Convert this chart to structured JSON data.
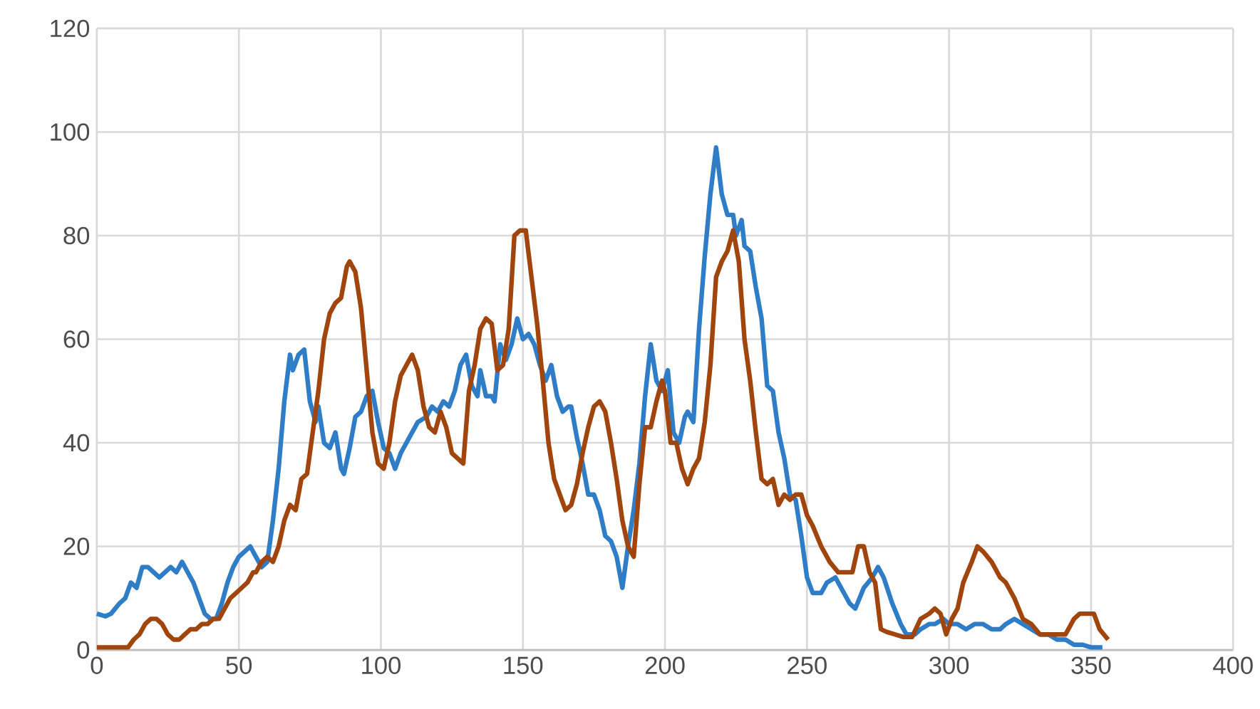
{
  "chart_data": {
    "type": "line",
    "xlim": [
      0,
      400
    ],
    "ylim": [
      0,
      120
    ],
    "xticks": [
      0,
      50,
      100,
      150,
      200,
      250,
      300,
      350,
      400
    ],
    "yticks": [
      0,
      20,
      40,
      60,
      80,
      100,
      120
    ],
    "grid": true,
    "line_style": "solid",
    "marker": "none",
    "series": [
      {
        "color": "#2e7dc6",
        "x": [
          0,
          3,
          5,
          8,
          10,
          12,
          14,
          16,
          18,
          20,
          22,
          24,
          26,
          28,
          30,
          32,
          34,
          36,
          38,
          40,
          42,
          44,
          46,
          48,
          50,
          52,
          54,
          56,
          58,
          60,
          62,
          64,
          66,
          68,
          69,
          71,
          73,
          75,
          77,
          78,
          80,
          82,
          84,
          86,
          87,
          89,
          91,
          93,
          95,
          97,
          99,
          101,
          103,
          105,
          107,
          110,
          113,
          116,
          118,
          120,
          122,
          124,
          126,
          128,
          130,
          132,
          134,
          135,
          137,
          139,
          140,
          142,
          144,
          146,
          148,
          150,
          152,
          154,
          156,
          158,
          160,
          162,
          164,
          166,
          167,
          169,
          171,
          173,
          175,
          177,
          179,
          181,
          183,
          185,
          187,
          189,
          191,
          193,
          195,
          197,
          199,
          201,
          203,
          205,
          207,
          208,
          210,
          212,
          214,
          216,
          218,
          220,
          222,
          224,
          225,
          227,
          228,
          230,
          232,
          234,
          236,
          238,
          240,
          242,
          244,
          246,
          248,
          250,
          252,
          255,
          257,
          260,
          263,
          265,
          267,
          270,
          273,
          275,
          277,
          280,
          283,
          285,
          288,
          290,
          293,
          295,
          298,
          300,
          303,
          306,
          309,
          312,
          315,
          318,
          320,
          323,
          326,
          329,
          332,
          335,
          338,
          341,
          344,
          347,
          350,
          354
        ],
        "values": [
          7,
          6.5,
          7,
          9,
          10,
          13,
          12,
          16,
          16,
          15,
          14,
          15,
          16,
          15,
          17,
          15,
          13,
          10,
          7,
          6,
          6,
          9,
          13,
          16,
          18,
          19,
          20,
          18,
          16,
          17,
          25,
          35,
          48,
          57,
          54,
          57,
          58,
          48,
          44,
          47,
          40,
          39,
          42,
          35,
          34,
          39,
          45,
          46,
          49,
          50,
          44,
          39,
          38,
          35,
          38,
          41,
          44,
          45,
          47,
          46,
          48,
          47,
          50,
          55,
          57,
          51,
          49,
          54,
          49,
          49,
          48,
          59,
          56,
          59,
          64,
          60,
          61,
          59,
          55,
          52,
          55,
          49,
          46,
          47,
          47,
          41,
          36,
          30,
          30,
          27,
          22,
          21,
          18,
          12,
          20,
          27,
          36,
          49,
          59,
          52,
          50,
          54,
          42,
          40,
          45,
          46,
          44,
          62,
          76,
          88,
          97,
          88,
          84,
          84,
          80,
          83,
          78,
          77,
          70,
          64,
          51,
          50,
          42,
          37,
          30,
          29,
          22,
          14,
          11,
          11,
          13,
          14,
          11,
          9,
          8,
          12,
          14,
          16,
          14,
          9,
          5,
          3,
          3,
          4,
          5,
          5,
          6,
          5,
          5,
          4,
          5,
          5,
          4,
          4,
          5,
          6,
          5,
          4,
          3,
          3,
          2,
          2,
          1,
          1,
          0.5,
          0.5
        ]
      },
      {
        "color": "#a0450d",
        "x": [
          0,
          5,
          9,
          11,
          13,
          15,
          17,
          19,
          21,
          23,
          25,
          27,
          29,
          31,
          33,
          35,
          37,
          39,
          41,
          43,
          45,
          47,
          49,
          51,
          53,
          55,
          56,
          58,
          60,
          62,
          64,
          66,
          68,
          70,
          72,
          74,
          76,
          78,
          80,
          82,
          84,
          86,
          88,
          89,
          91,
          93,
          95,
          97,
          99,
          101,
          103,
          105,
          107,
          109,
          111,
          113,
          115,
          117,
          119,
          121,
          123,
          125,
          127,
          129,
          131,
          133,
          135,
          137,
          139,
          141,
          143,
          145,
          147,
          149,
          151,
          153,
          155,
          157,
          159,
          161,
          163,
          165,
          167,
          169,
          171,
          173,
          175,
          177,
          179,
          181,
          183,
          185,
          187,
          189,
          191,
          193,
          195,
          197,
          199,
          200,
          202,
          204,
          206,
          208,
          210,
          212,
          214,
          216,
          218,
          220,
          222,
          224,
          226,
          228,
          230,
          232,
          234,
          236,
          238,
          240,
          242,
          244,
          246,
          248,
          250,
          252,
          255,
          258,
          261,
          263,
          266,
          268,
          270,
          272,
          274,
          276,
          278,
          281,
          284,
          287,
          290,
          293,
          295,
          297,
          299,
          301,
          303,
          305,
          308,
          310,
          312,
          315,
          318,
          320,
          323,
          326,
          329,
          332,
          335,
          338,
          341,
          344,
          346,
          349,
          351,
          353,
          356
        ],
        "values": [
          0.5,
          0.5,
          0.5,
          0.5,
          2,
          3,
          5,
          6,
          6,
          5,
          3,
          2,
          2,
          3,
          4,
          4,
          5,
          5,
          6,
          6,
          8,
          10,
          11,
          12,
          13,
          15,
          15,
          17,
          18,
          17,
          20,
          25,
          28,
          27,
          33,
          34,
          42,
          50,
          60,
          65,
          67,
          68,
          74,
          75,
          73,
          66,
          54,
          42,
          36,
          35,
          40,
          48,
          53,
          55,
          57,
          54,
          47,
          43,
          42,
          46,
          43,
          38,
          37,
          36,
          50,
          55,
          62,
          64,
          63,
          54,
          55,
          62,
          80,
          81,
          81,
          72,
          63,
          52,
          40,
          33,
          30,
          27,
          28,
          32,
          38,
          43,
          47,
          48,
          46,
          40,
          33,
          25,
          20,
          18,
          32,
          43,
          43,
          48,
          52,
          50,
          40,
          40,
          35,
          32,
          35,
          37,
          44,
          55,
          72,
          75,
          77,
          81,
          75,
          60,
          52,
          42,
          33,
          32,
          33,
          28,
          30,
          29,
          30,
          30,
          26,
          24,
          20,
          17,
          15,
          15,
          15,
          20,
          20,
          15,
          13,
          4,
          3.5,
          3,
          2.5,
          2.5,
          6,
          7,
          8,
          7,
          3,
          6,
          8,
          13,
          17,
          20,
          19,
          17,
          14,
          13,
          10,
          6,
          5,
          3,
          3,
          3,
          3,
          6,
          7,
          7,
          7,
          4,
          2
        ]
      }
    ]
  }
}
